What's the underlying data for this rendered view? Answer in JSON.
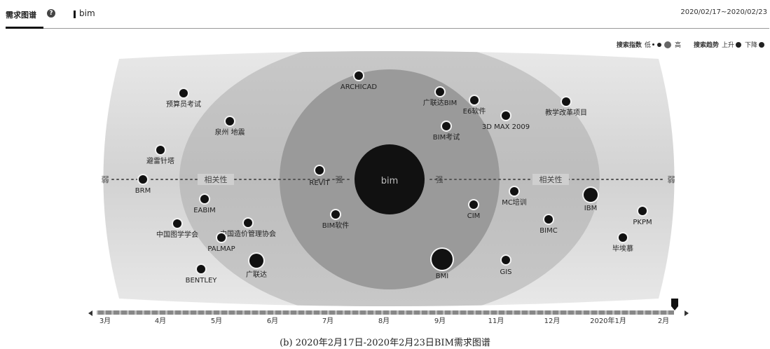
{
  "header": {
    "tab_title": "需求图谱",
    "help_icon": "?",
    "keyword": "bim",
    "date_range": "2020/02/17~2020/02/23"
  },
  "legend": {
    "search_index_label": "搜索指数",
    "low_label": "低",
    "high_label": "高",
    "trend_label": "搜索趋势",
    "rise_label": "上升",
    "fall_label": "下降"
  },
  "chart_data": {
    "type": "scatter",
    "center": {
      "label": "bim"
    },
    "axis_labels": {
      "weak_left": "弱",
      "relevance_left": "相关性",
      "strong_left": "强",
      "strong_right": "强",
      "relevance_right": "相关性",
      "weak_right": "弱"
    },
    "points": [
      {
        "label": "ARCHICAD",
        "size": "medium"
      },
      {
        "label": "预算员考试",
        "size": "medium"
      },
      {
        "label": "广联达BIM",
        "size": "medium"
      },
      {
        "label": "E6软件",
        "size": "medium"
      },
      {
        "label": "教学改革项目",
        "size": "medium"
      },
      {
        "label": "泉州 地震",
        "size": "medium"
      },
      {
        "label": "3D MAX 2009",
        "size": "medium"
      },
      {
        "label": "BIM考试",
        "size": "medium"
      },
      {
        "label": "避雷针塔",
        "size": "medium"
      },
      {
        "label": "BRM",
        "size": "medium"
      },
      {
        "label": "REVIT",
        "size": "medium"
      },
      {
        "label": "MC培训",
        "size": "medium"
      },
      {
        "label": "IBM",
        "size": "large"
      },
      {
        "label": "EABIM",
        "size": "medium"
      },
      {
        "label": "CIM",
        "size": "medium"
      },
      {
        "label": "PKPM",
        "size": "medium"
      },
      {
        "label": "BIM软件",
        "size": "medium"
      },
      {
        "label": "中国图学学会",
        "size": "medium"
      },
      {
        "label": "中国造价管理协会",
        "size": "medium"
      },
      {
        "label": "BIMC",
        "size": "medium"
      },
      {
        "label": "PALMAP",
        "size": "medium"
      },
      {
        "label": "毕埃慕",
        "size": "medium"
      },
      {
        "label": "广联达",
        "size": "large"
      },
      {
        "label": "BMI",
        "size": "xlarge"
      },
      {
        "label": "GIS",
        "size": "medium"
      },
      {
        "label": "BENTLEY",
        "size": "medium"
      }
    ],
    "timeline": [
      "3月",
      "4月",
      "5月",
      "6月",
      "7月",
      "8月",
      "9月",
      "11月",
      "12月",
      "2020年1月",
      "2月"
    ]
  },
  "caption": "(b) 2020年2月17日-2020年2月23日BIM需求图谱"
}
